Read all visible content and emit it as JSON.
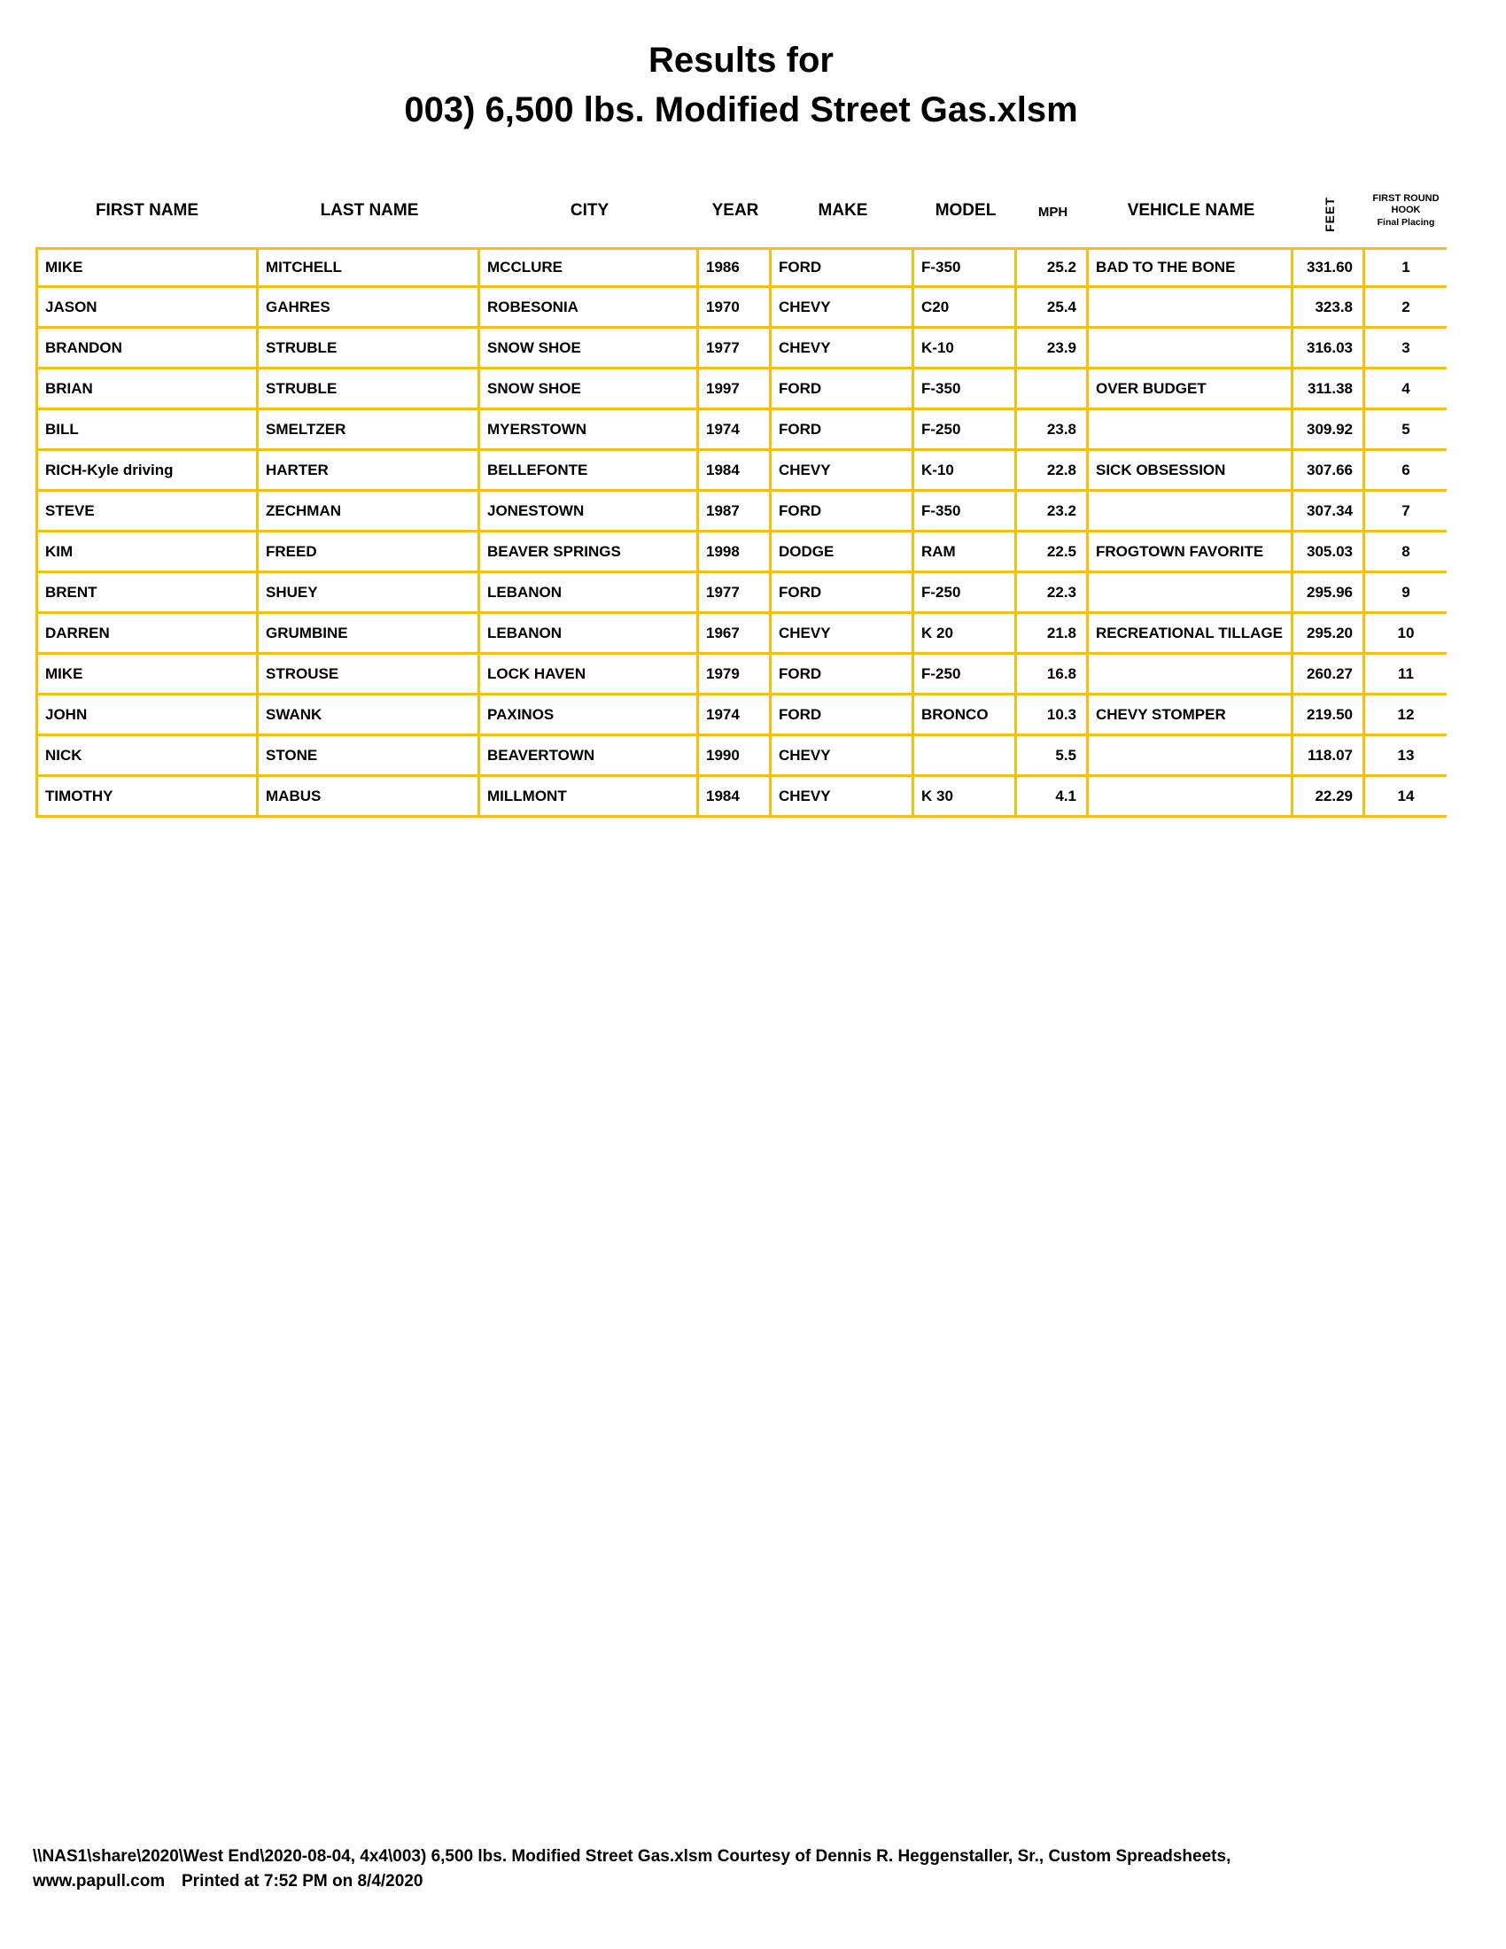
{
  "title": {
    "line1": "Results for",
    "line2": "003) 6,500 lbs. Modified Street Gas.xlsm"
  },
  "colors": {
    "border_gold": "#F2C012",
    "text": "#000000",
    "background": "#FFFFFF"
  },
  "table": {
    "headers": {
      "first_name": "FIRST NAME",
      "last_name": "LAST NAME",
      "city": "CITY",
      "year": "YEAR",
      "make": "MAKE",
      "model": "MODEL",
      "mph": "MPH",
      "vehicle_name": "VEHICLE NAME",
      "feet": "FEET",
      "placing_line1": "FIRST ROUND",
      "placing_line2": "HOOK",
      "placing_line3": "Final Placing"
    },
    "rows": [
      {
        "first_name": "MIKE",
        "last_name": "MITCHELL",
        "city": "MCCLURE",
        "year": "1986",
        "make": "FORD",
        "model": "F-350",
        "mph": "25.2",
        "vehicle_name": "BAD TO THE BONE",
        "feet": "331.60",
        "placing": "1"
      },
      {
        "first_name": "JASON",
        "last_name": "GAHRES",
        "city": "ROBESONIA",
        "year": "1970",
        "make": "CHEVY",
        "model": "C20",
        "mph": "25.4",
        "vehicle_name": "",
        "feet": "323.8",
        "placing": "2"
      },
      {
        "first_name": "BRANDON",
        "last_name": "STRUBLE",
        "city": "SNOW SHOE",
        "year": "1977",
        "make": "CHEVY",
        "model": "K-10",
        "mph": "23.9",
        "vehicle_name": "",
        "feet": "316.03",
        "placing": "3"
      },
      {
        "first_name": "BRIAN",
        "last_name": "STRUBLE",
        "city": "SNOW SHOE",
        "year": "1997",
        "make": "FORD",
        "model": "F-350",
        "mph": "",
        "vehicle_name": "OVER BUDGET",
        "feet": "311.38",
        "placing": "4"
      },
      {
        "first_name": "BILL",
        "last_name": "SMELTZER",
        "city": "MYERSTOWN",
        "year": "1974",
        "make": "FORD",
        "model": "F-250",
        "mph": "23.8",
        "vehicle_name": "",
        "feet": "309.92",
        "placing": "5"
      },
      {
        "first_name": "RICH-Kyle driving",
        "last_name": "HARTER",
        "city": "BELLEFONTE",
        "year": "1984",
        "make": "CHEVY",
        "model": "K-10",
        "mph": "22.8",
        "vehicle_name": "SICK OBSESSION",
        "feet": "307.66",
        "placing": "6"
      },
      {
        "first_name": "STEVE",
        "last_name": "ZECHMAN",
        "city": "JONESTOWN",
        "year": "1987",
        "make": "FORD",
        "model": "F-350",
        "mph": "23.2",
        "vehicle_name": "",
        "feet": "307.34",
        "placing": "7"
      },
      {
        "first_name": "KIM",
        "last_name": "FREED",
        "city": "BEAVER SPRINGS",
        "year": "1998",
        "make": "DODGE",
        "model": "RAM",
        "mph": "22.5",
        "vehicle_name": "FROGTOWN FAVORITE",
        "feet": "305.03",
        "placing": "8"
      },
      {
        "first_name": "BRENT",
        "last_name": "SHUEY",
        "city": "LEBANON",
        "year": "1977",
        "make": "FORD",
        "model": "F-250",
        "mph": "22.3",
        "vehicle_name": "",
        "feet": "295.96",
        "placing": "9"
      },
      {
        "first_name": "DARREN",
        "last_name": "GRUMBINE",
        "city": "LEBANON",
        "year": "1967",
        "make": "CHEVY",
        "model": "K 20",
        "mph": "21.8",
        "vehicle_name": "RECREATIONAL TILLAGE",
        "feet": "295.20",
        "placing": "10"
      },
      {
        "first_name": "MIKE",
        "last_name": "STROUSE",
        "city": "LOCK HAVEN",
        "year": "1979",
        "make": "FORD",
        "model": "F-250",
        "mph": "16.8",
        "vehicle_name": "",
        "feet": "260.27",
        "placing": "11"
      },
      {
        "first_name": "JOHN",
        "last_name": "SWANK",
        "city": "PAXINOS",
        "year": "1974",
        "make": "FORD",
        "model": "BRONCO",
        "mph": "10.3",
        "vehicle_name": "CHEVY STOMPER",
        "feet": "219.50",
        "placing": "12"
      },
      {
        "first_name": "NICK",
        "last_name": "STONE",
        "city": "BEAVERTOWN",
        "year": "1990",
        "make": "CHEVY",
        "model": "",
        "mph": "5.5",
        "vehicle_name": "",
        "feet": "118.07",
        "placing": "13"
      },
      {
        "first_name": "TIMOTHY",
        "last_name": "MABUS",
        "city": "MILLMONT",
        "year": "1984",
        "make": "CHEVY",
        "model": "K 30",
        "mph": "4.1",
        "vehicle_name": "",
        "feet": "22.29",
        "placing": "14"
      }
    ]
  },
  "footer": {
    "line1": "\\\\NAS1\\share\\2020\\West End\\2020-08-04, 4x4\\003) 6,500 lbs. Modified Street Gas.xlsm  Courtesy of Dennis R. Heggenstaller, Sr., Custom Spreadsheets,",
    "website": "www.papull.com",
    "printed": "Printed at 7:52 PM on 8/4/2020"
  }
}
